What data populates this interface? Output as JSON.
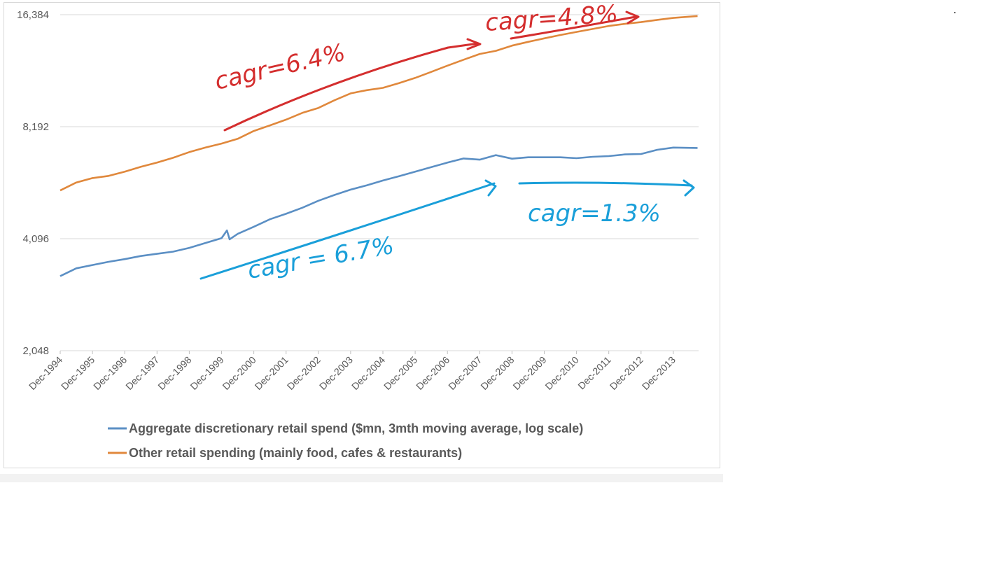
{
  "chart_data": {
    "type": "line",
    "title": "",
    "xlabel": "",
    "ylabel": "",
    "y_scale": "log2",
    "ylim": [
      2048,
      16384
    ],
    "y_ticks": [
      "2,048",
      "4,096",
      "8,192",
      "16,384"
    ],
    "y_tick_values": [
      2048,
      4096,
      8192,
      16384
    ],
    "x_range": [
      "Dec-1994",
      "Sep-2014"
    ],
    "x_ticks": [
      "Dec-1994",
      "Dec-1995",
      "Dec-1996",
      "Dec-1997",
      "Dec-1998",
      "Dec-1999",
      "Dec-2000",
      "Dec-2001",
      "Dec-2002",
      "Dec-2003",
      "Dec-2004",
      "Dec-2005",
      "Dec-2006",
      "Dec-2007",
      "Dec-2008",
      "Dec-2009",
      "Dec-2010",
      "Dec-2011",
      "Dec-2012",
      "Dec-2013"
    ],
    "grid": "horizontal",
    "legend_position": "bottom",
    "series": [
      {
        "name": "Aggregate discretionary retail spend ($mn, 3mth moving average, log scale)",
        "color": "#5b8fc4",
        "points": [
          [
            "Dec-1994",
            3250
          ],
          [
            "Jun-1995",
            3410
          ],
          [
            "Dec-1995",
            3480
          ],
          [
            "Jun-1996",
            3550
          ],
          [
            "Dec-1996",
            3610
          ],
          [
            "Jun-1997",
            3680
          ],
          [
            "Dec-1997",
            3730
          ],
          [
            "Jun-1998",
            3780
          ],
          [
            "Dec-1998",
            3870
          ],
          [
            "Jun-1999",
            3990
          ],
          [
            "Dec-1999",
            4110
          ],
          [
            "Feb-2000",
            4310
          ],
          [
            "Mar-2000",
            4080
          ],
          [
            "Jun-2000",
            4220
          ],
          [
            "Dec-2000",
            4410
          ],
          [
            "Jun-2001",
            4620
          ],
          [
            "Dec-2001",
            4780
          ],
          [
            "Jun-2002",
            4960
          ],
          [
            "Dec-2002",
            5180
          ],
          [
            "Jun-2003",
            5370
          ],
          [
            "Dec-2003",
            5550
          ],
          [
            "Jun-2004",
            5700
          ],
          [
            "Dec-2004",
            5870
          ],
          [
            "Jun-2005",
            6030
          ],
          [
            "Dec-2005",
            6200
          ],
          [
            "Jun-2006",
            6380
          ],
          [
            "Dec-2006",
            6560
          ],
          [
            "Jun-2007",
            6730
          ],
          [
            "Dec-2007",
            6680
          ],
          [
            "Jun-2008",
            6870
          ],
          [
            "Dec-2008",
            6720
          ],
          [
            "Jun-2009",
            6780
          ],
          [
            "Dec-2009",
            6780
          ],
          [
            "Jun-2010",
            6780
          ],
          [
            "Dec-2010",
            6740
          ],
          [
            "Jun-2011",
            6800
          ],
          [
            "Dec-2011",
            6830
          ],
          [
            "Jun-2012",
            6900
          ],
          [
            "Dec-2012",
            6920
          ],
          [
            "Jun-2013",
            7100
          ],
          [
            "Dec-2013",
            7200
          ],
          [
            "Sep-2014",
            7180
          ]
        ]
      },
      {
        "name": "Other retail spending (mainly food, cafes & restaurants)",
        "color": "#e0883c",
        "points": [
          [
            "Dec-1994",
            5520
          ],
          [
            "Jun-1995",
            5800
          ],
          [
            "Dec-1995",
            5960
          ],
          [
            "Jun-1996",
            6040
          ],
          [
            "Dec-1996",
            6200
          ],
          [
            "Jun-1997",
            6390
          ],
          [
            "Dec-1997",
            6560
          ],
          [
            "Jun-1998",
            6760
          ],
          [
            "Dec-1998",
            7000
          ],
          [
            "Jun-1999",
            7200
          ],
          [
            "Dec-1999",
            7380
          ],
          [
            "Jun-2000",
            7600
          ],
          [
            "Dec-2000",
            7980
          ],
          [
            "Jun-2001",
            8260
          ],
          [
            "Dec-2001",
            8560
          ],
          [
            "Jun-2002",
            8920
          ],
          [
            "Dec-2002",
            9200
          ],
          [
            "Jun-2003",
            9650
          ],
          [
            "Dec-2003",
            10070
          ],
          [
            "Jun-2004",
            10270
          ],
          [
            "Dec-2004",
            10420
          ],
          [
            "Jun-2005",
            10730
          ],
          [
            "Dec-2005",
            11080
          ],
          [
            "Jun-2006",
            11500
          ],
          [
            "Dec-2006",
            11950
          ],
          [
            "Jun-2007",
            12400
          ],
          [
            "Dec-2007",
            12850
          ],
          [
            "Jun-2008",
            13100
          ],
          [
            "Dec-2008",
            13530
          ],
          [
            "Jun-2009",
            13850
          ],
          [
            "Dec-2009",
            14150
          ],
          [
            "Jun-2010",
            14450
          ],
          [
            "Dec-2010",
            14730
          ],
          [
            "Jun-2011",
            15000
          ],
          [
            "Dec-2011",
            15280
          ],
          [
            "Jun-2012",
            15480
          ],
          [
            "Dec-2012",
            15650
          ],
          [
            "Jun-2013",
            15870
          ],
          [
            "Dec-2013",
            16060
          ],
          [
            "Sep-2014",
            16250
          ]
        ]
      }
    ],
    "annotations": [
      {
        "text": "cagr=6.4%",
        "color": "#d42e2e"
      },
      {
        "text": "cagr=4.8%",
        "color": "#d42e2e"
      },
      {
        "text": "cagr = 6.7%",
        "color": "#1a9fd9"
      },
      {
        "text": "cagr=1.3%",
        "color": "#1a9fd9"
      }
    ]
  }
}
